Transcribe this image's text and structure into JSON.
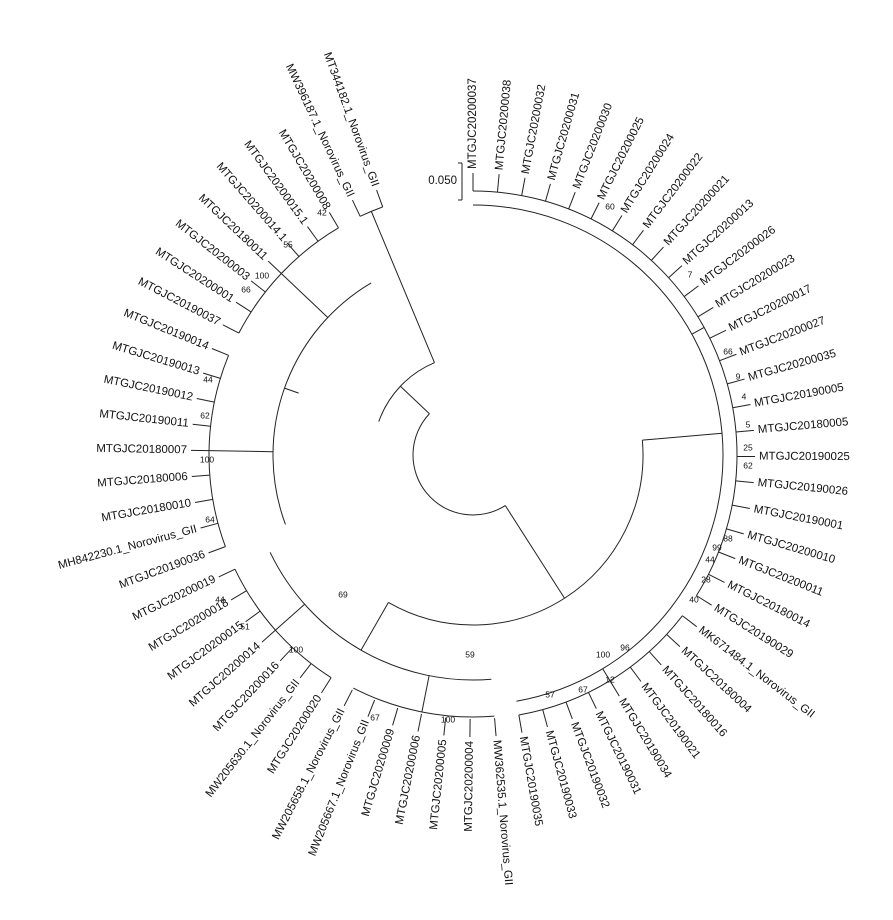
{
  "scale_bar": {
    "label": "0.050"
  },
  "leaves": [
    "MTGJC20200037",
    "MTGJC20200038",
    "MTGJC20200032",
    "MTGJC20200031",
    "MTGJC20200030",
    "MTGJC20200025",
    "MTGJC20200024",
    "MTGJC20200022",
    "MTGJC20200021",
    "MTGJC20200013",
    "MTGJC20200026",
    "MTGJC20200023",
    "MTGJC20200017",
    "MTGJC20200027",
    "MTGJC20200035",
    "MTGJC20190005",
    "MTGJC20180005",
    "MTGJC20190025",
    "MTGJC20190026",
    "MTGJC20190001",
    "MTGJC20200010",
    "MTGJC20200011",
    "MTGJC20180014",
    "MTGJC20190029",
    "MK671484.1_Norovirus_GII",
    "MTGJC20180004",
    "MTGJC20180016",
    "MTGJC20190021",
    "MTGJC20190034",
    "MTGJC20190031",
    "MTGJC20190032",
    "MTGJC20190033",
    "MTGJC20190035",
    "MW362535.1_Norovirus_GII",
    "MTGJC20200004",
    "MTGJC20200005",
    "MTGJC20200006",
    "MTGJC20200009",
    "MW205667.1_Norovirus_GII",
    "MW205658.1_Norovirus_GII",
    "MTGJC20200020",
    "MW205630.1_Norovirus_GII",
    "MTGJC20200016",
    "MTGJC20200014",
    "MTGJC20200015",
    "MTGJC20200018",
    "MTGJC20200019",
    "MTGJC20190036",
    "MH842230.1_Norovirus_GII",
    "MTGJC20180010",
    "MTGJC20180006",
    "MTGJC20180007",
    "MTGJC20190011",
    "MTGJC20190012",
    "MTGJC20190013",
    "MTGJC20190014",
    "MTGJC20190037",
    "MTGJC20200001",
    "MTGJC20200003",
    "MTGJC20180011",
    "MTGJC20200014.1",
    "MTGJC20200015.1",
    "MTGJC20200008",
    "MW396187.1_Norovirus_GII",
    "MT344182.1_Norovirus_GII"
  ],
  "bootstrap": [
    "42",
    "55",
    "100",
    "66",
    "44",
    "62",
    "100",
    "64",
    "44",
    "51",
    "100",
    "69",
    "59",
    "100",
    "67",
    "100",
    "57",
    "67",
    "12",
    "96",
    "60",
    "7",
    "66",
    "9",
    "4",
    "5",
    "25",
    "62",
    "88",
    "99",
    "44",
    "28",
    "40"
  ]
}
